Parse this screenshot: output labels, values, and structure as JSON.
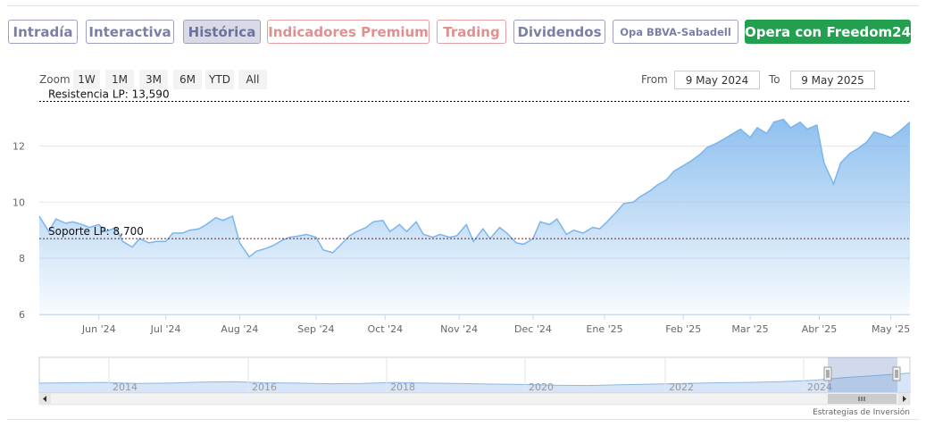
{
  "tabs": [
    {
      "label": "Intradía",
      "style": "normal"
    },
    {
      "label": "Interactiva",
      "style": "normal"
    },
    {
      "label": "Histórica",
      "style": "active"
    },
    {
      "label": "Indicadores Premium",
      "style": "premium"
    },
    {
      "label": "Trading",
      "style": "premium"
    },
    {
      "label": "Dividendos",
      "style": "normal"
    },
    {
      "label": "Opa BBVA-Sabadell",
      "style": "small"
    },
    {
      "label": "Opera con Freedom24",
      "style": "cta"
    }
  ],
  "zoom": {
    "label": "Zoom",
    "buttons": [
      "1W",
      "1M",
      "3M",
      "6M",
      "YTD",
      "All"
    ]
  },
  "range": {
    "from_label": "From",
    "from_value": "9 May 2024",
    "to_label": "To",
    "to_value": "9 May 2025"
  },
  "credit": "Estrategias de Inversión",
  "colors": {
    "line": "#7cb5ec",
    "area_top": "#7cb5ec",
    "resistance": "#000000",
    "support": "#7a1d1d",
    "navigator_mask": "#6685c2"
  },
  "chart_data": {
    "type": "area",
    "x_start": "2024-05-09",
    "x_end": "2025-05-09",
    "ylim": [
      6,
      13.7
    ],
    "y_ticks": [
      6,
      8,
      10,
      12
    ],
    "x_tick_labels": [
      {
        "label": "Jun '24",
        "date": "2024-06-03"
      },
      {
        "label": "Jul '24",
        "date": "2024-07-01"
      },
      {
        "label": "Aug '24",
        "date": "2024-08-01"
      },
      {
        "label": "Sep '24",
        "date": "2024-09-02"
      },
      {
        "label": "Oct '24",
        "date": "2024-10-01"
      },
      {
        "label": "Nov '24",
        "date": "2024-11-01"
      },
      {
        "label": "Dec '24",
        "date": "2024-12-02"
      },
      {
        "label": "Ene '25",
        "date": "2025-01-01"
      },
      {
        "label": "Feb '25",
        "date": "2025-02-03"
      },
      {
        "label": "Mar '25",
        "date": "2025-03-03"
      },
      {
        "label": "Abr '25",
        "date": "2025-04-01"
      },
      {
        "label": "May '25",
        "date": "2025-05-01"
      }
    ],
    "series": [
      {
        "x": [
          "2024-05-09",
          "2024-05-13",
          "2024-05-16",
          "2024-05-20",
          "2024-05-23",
          "2024-05-27",
          "2024-05-30",
          "2024-06-03",
          "2024-06-06",
          "2024-06-10",
          "2024-06-13",
          "2024-06-17",
          "2024-06-20",
          "2024-06-24",
          "2024-06-27",
          "2024-07-01",
          "2024-07-04",
          "2024-07-08",
          "2024-07-11",
          "2024-07-15",
          "2024-07-18",
          "2024-07-22",
          "2024-07-25",
          "2024-07-29",
          "2024-08-01",
          "2024-08-05",
          "2024-08-08",
          "2024-08-12",
          "2024-08-15",
          "2024-08-19",
          "2024-08-22",
          "2024-08-26",
          "2024-08-29",
          "2024-09-02",
          "2024-09-05",
          "2024-09-09",
          "2024-09-12",
          "2024-09-16",
          "2024-09-19",
          "2024-09-23",
          "2024-09-26",
          "2024-09-30",
          "2024-10-03",
          "2024-10-07",
          "2024-10-10",
          "2024-10-14",
          "2024-10-17",
          "2024-10-21",
          "2024-10-24",
          "2024-10-28",
          "2024-10-31",
          "2024-11-04",
          "2024-11-07",
          "2024-11-11",
          "2024-11-14",
          "2024-11-18",
          "2024-11-21",
          "2024-11-25",
          "2024-11-28",
          "2024-12-02",
          "2024-12-05",
          "2024-12-09",
          "2024-12-12",
          "2024-12-16",
          "2024-12-19",
          "2024-12-23",
          "2024-12-27",
          "2024-12-30",
          "2025-01-02",
          "2025-01-06",
          "2025-01-09",
          "2025-01-13",
          "2025-01-16",
          "2025-01-20",
          "2025-01-23",
          "2025-01-27",
          "2025-01-30",
          "2025-02-03",
          "2025-02-06",
          "2025-02-10",
          "2025-02-13",
          "2025-02-17",
          "2025-02-20",
          "2025-02-24",
          "2025-02-27",
          "2025-03-03",
          "2025-03-06",
          "2025-03-10",
          "2025-03-13",
          "2025-03-17",
          "2025-03-20",
          "2025-03-24",
          "2025-03-27",
          "2025-03-31",
          "2025-04-03",
          "2025-04-07",
          "2025-04-10",
          "2025-04-14",
          "2025-04-17",
          "2025-04-21",
          "2025-04-24",
          "2025-04-28",
          "2025-05-01",
          "2025-05-05",
          "2025-05-09"
        ],
        "y": [
          9.5,
          8.95,
          9.4,
          9.25,
          9.3,
          9.2,
          9.1,
          9.2,
          8.95,
          9.1,
          8.6,
          8.4,
          8.7,
          8.55,
          8.6,
          8.6,
          8.9,
          8.9,
          9.0,
          9.05,
          9.2,
          9.45,
          9.35,
          9.5,
          8.55,
          8.05,
          8.25,
          8.35,
          8.45,
          8.65,
          8.75,
          8.8,
          8.85,
          8.75,
          8.3,
          8.2,
          8.45,
          8.8,
          8.95,
          9.1,
          9.3,
          9.35,
          8.95,
          9.2,
          8.95,
          9.3,
          8.85,
          8.75,
          8.85,
          8.75,
          8.8,
          9.2,
          8.6,
          9.05,
          8.7,
          9.1,
          8.9,
          8.55,
          8.5,
          8.7,
          9.3,
          9.2,
          9.4,
          8.85,
          9.0,
          8.9,
          9.1,
          9.05,
          9.3,
          9.65,
          9.95,
          10.0,
          10.2,
          10.4,
          10.6,
          10.8,
          11.1,
          11.3,
          11.45,
          11.7,
          11.95,
          12.1,
          12.25,
          12.45,
          12.6,
          12.3,
          12.65,
          12.45,
          12.85,
          12.95,
          12.65,
          12.85,
          12.6,
          12.75,
          11.4,
          10.65,
          11.4,
          11.75,
          11.9,
          12.15,
          12.5,
          12.4,
          12.3,
          12.55,
          12.85
        ]
      }
    ],
    "annotations": [
      {
        "label": "Resistencia LP: 13,590",
        "y": 13.59
      },
      {
        "label": "Soporte LP: 8,700",
        "y": 8.7
      }
    ],
    "navigator": {
      "year_labels": [
        "2014",
        "2016",
        "2018",
        "2020",
        "2022",
        "2024"
      ]
    }
  }
}
